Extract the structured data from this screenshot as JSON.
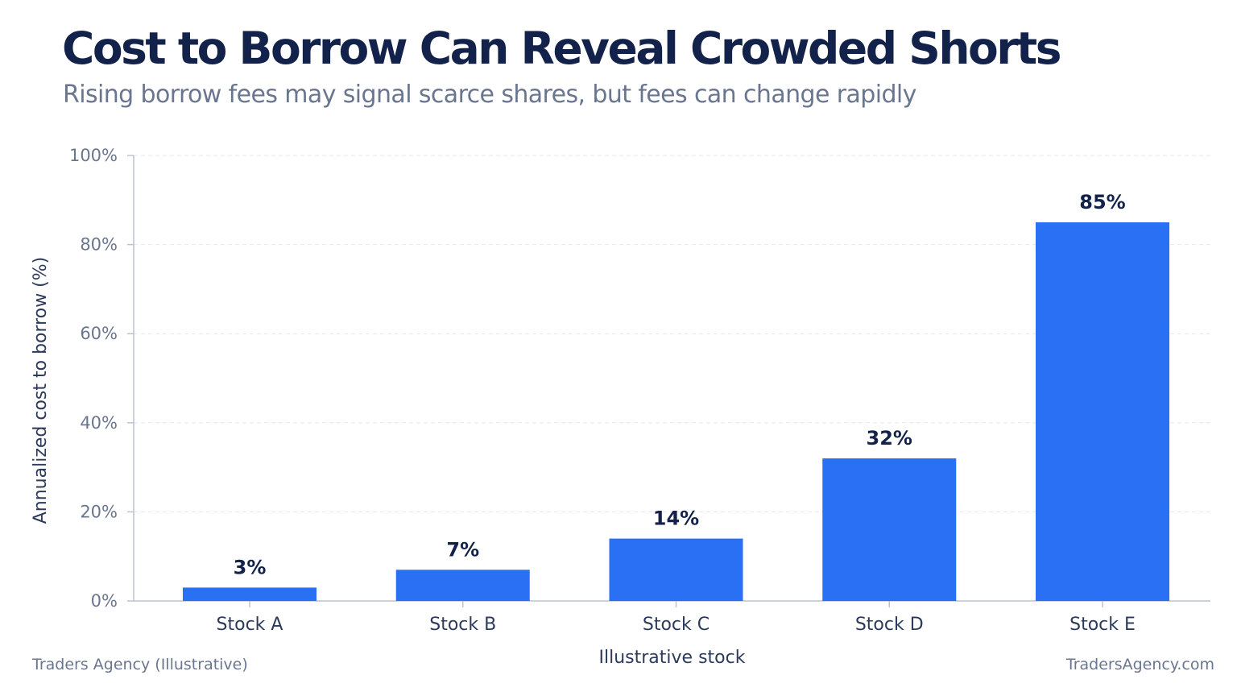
{
  "title": "Cost to Borrow Can Reveal Crowded Shorts",
  "subtitle": "Rising borrow fees may signal scarce shares, but fees can change rapidly",
  "footer": {
    "left": "Traders Agency (Illustrative)",
    "right": "TradersAgency.com"
  },
  "colors": {
    "bar": "#2970f5",
    "title": "#13224a",
    "muted": "#6a7690",
    "grid": "#e4e7ee",
    "axis": "#bcc3d1"
  },
  "chart_data": {
    "type": "bar",
    "categories": [
      "Stock A",
      "Stock B",
      "Stock C",
      "Stock D",
      "Stock E"
    ],
    "values": [
      3,
      7,
      14,
      32,
      85
    ],
    "value_labels": [
      "3%",
      "7%",
      "14%",
      "32%",
      "85%"
    ],
    "xlabel": "Illustrative stock",
    "ylabel": "Annualized cost to borrow (%)",
    "ylim": [
      0,
      100
    ],
    "yticks": [
      0,
      20,
      40,
      60,
      80,
      100
    ],
    "ytick_labels": [
      "0%",
      "20%",
      "40%",
      "60%",
      "80%",
      "100%"
    ],
    "grid": true,
    "legend": "none"
  }
}
